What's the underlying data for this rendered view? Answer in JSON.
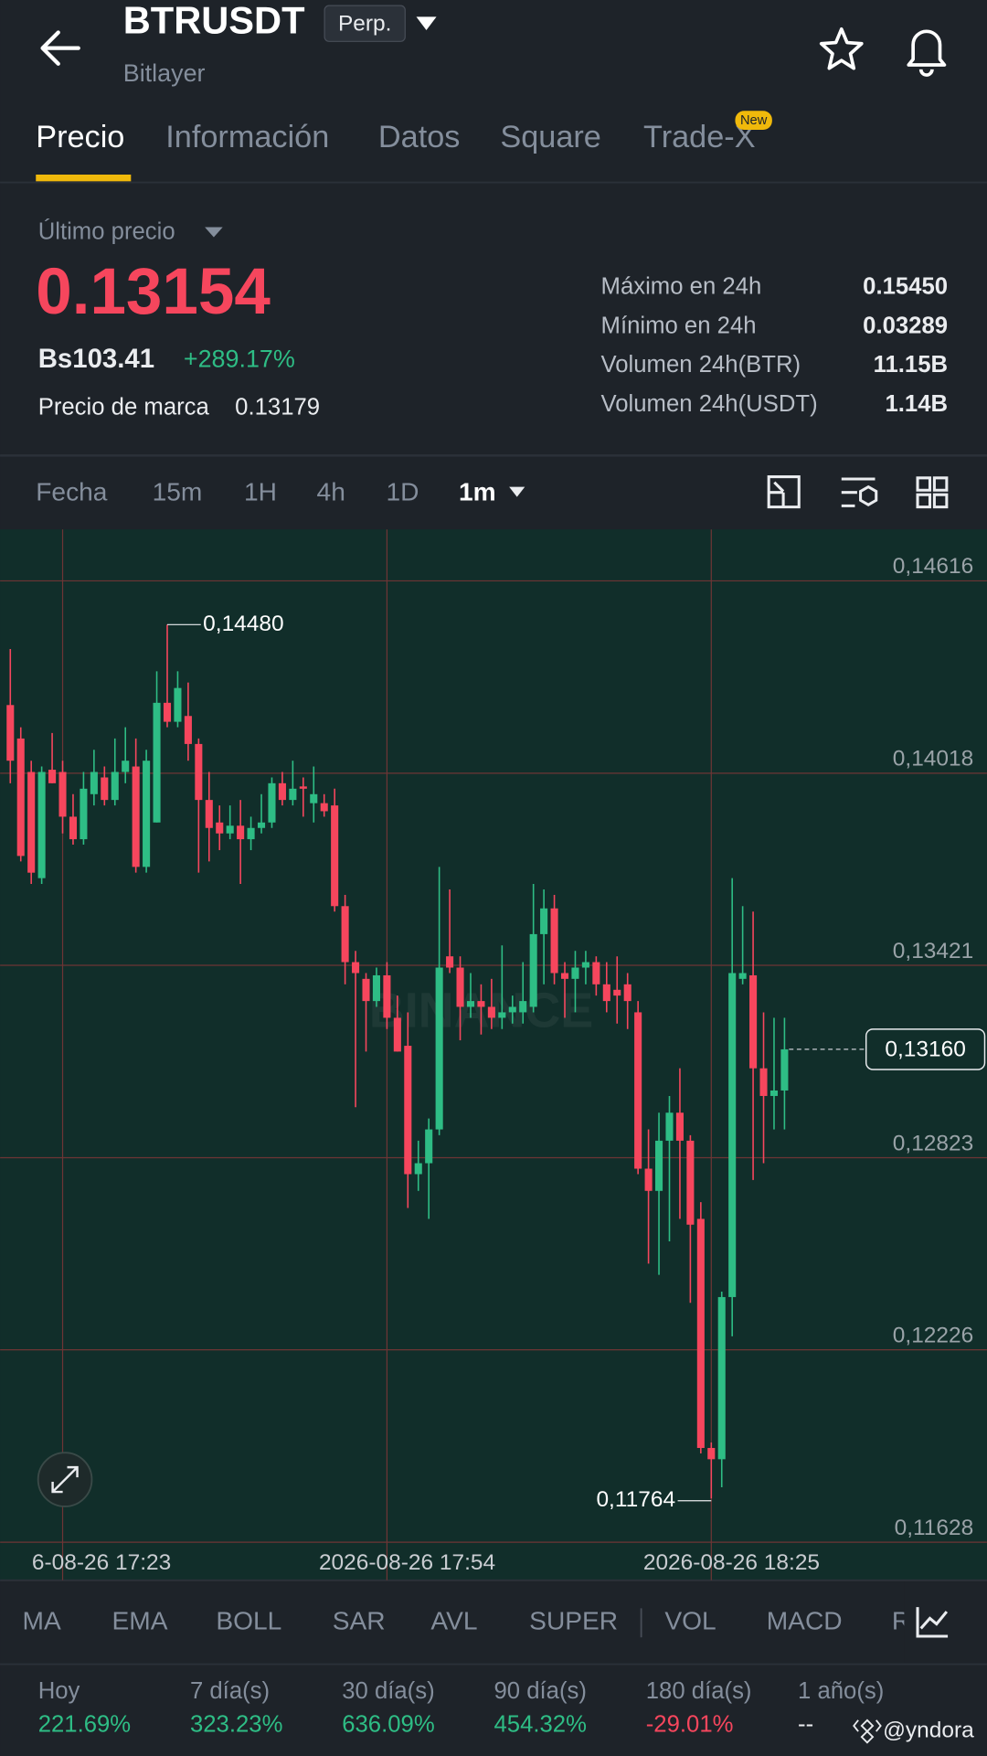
{
  "header": {
    "symbol": "BTRUSDT",
    "contract": "Perp.",
    "subtitle": "Bitlayer"
  },
  "tabs": [
    "Precio",
    "Información",
    "Datos",
    "Square",
    "Trade-X"
  ],
  "new_badge": "New",
  "price_panel": {
    "last_price_label": "Último precio",
    "last_price": "0.13154",
    "local_price": "Bs103.41",
    "change": "+289.17%",
    "mark_price_label": "Precio de marca",
    "mark_price": "0.13179",
    "stats": [
      {
        "label": "Máximo en 24h",
        "value": "0.15450"
      },
      {
        "label": "Mínimo en 24h",
        "value": "0.03289"
      },
      {
        "label": "Volumen 24h(BTR)",
        "value": "11.15B"
      },
      {
        "label": "Volumen 24h(USDT)",
        "value": "1.14B"
      }
    ]
  },
  "intervals": [
    "Fecha",
    "15m",
    "1H",
    "4h",
    "1D",
    "1m"
  ],
  "chart_data": {
    "type": "candlestick",
    "watermark": "BINANCE",
    "up_color": "#2ebd85",
    "down_color": "#f6465d",
    "xlim": [
      -0.98,
      93.35
    ],
    "ylim": [
      0.11628,
      0.14776
    ],
    "xticks": [
      {
        "value": 5,
        "label": "6-08-26 17:23"
      },
      {
        "value": 36,
        "label": "2026-08-26 17:54"
      },
      {
        "value": 67,
        "label": "2026-08-26 18:25"
      }
    ],
    "yticks": [
      {
        "value": 0.14616,
        "label": "0,14616"
      },
      {
        "value": 0.14018,
        "label": "0,14018"
      },
      {
        "value": 0.13421,
        "label": "0,13421"
      },
      {
        "value": 0.12823,
        "label": "0,12823"
      },
      {
        "value": 0.12226,
        "label": "0,12226"
      },
      {
        "value": 0.11628,
        "label": "0,11628"
      }
    ],
    "grid": true,
    "open": [
      0.1423,
      0.14126,
      0.14022,
      0.13692,
      0.14029,
      0.14022,
      0.13883,
      0.13813,
      0.13953,
      0.14005,
      0.13935,
      0.14022,
      0.14039,
      0.13727,
      0.13865,
      0.14237,
      0.14178,
      0.14196,
      0.14109,
      0.13935,
      0.13865,
      0.13831,
      0.13855,
      0.13813,
      0.13848,
      0.13865,
      0.13987,
      0.13935,
      0.13977,
      0.13925,
      0.13925,
      0.13918,
      0.13605,
      0.13431,
      0.13379,
      0.1331,
      0.1339,
      0.13258,
      0.13171,
      0.12772,
      0.12806,
      0.12911,
      0.13449,
      0.13414,
      0.13292,
      0.1331,
      0.13292,
      0.13258,
      0.13275,
      0.13275,
      0.13292,
      0.13518,
      0.13598,
      0.13397,
      0.13379,
      0.13414,
      0.13431,
      0.13362,
      0.13345,
      0.13362,
      0.13275,
      0.12789,
      0.1272,
      0.12876,
      0.12963,
      0.12876,
      0.12633,
      0.11921,
      0.11886,
      0.1239,
      0.13379,
      0.1339,
      0.13101,
      0.13015,
      0.13032
    ],
    "high": [
      0.14404,
      0.14161,
      0.14057,
      0.14039,
      0.14143,
      0.14057,
      0.13953,
      0.14022,
      0.14091,
      0.14039,
      0.14126,
      0.14161,
      0.14126,
      0.14091,
      0.14335,
      0.1448,
      0.14335,
      0.143,
      0.14126,
      0.14022,
      0.13918,
      0.13918,
      0.13935,
      0.13883,
      0.13953,
      0.14005,
      0.14022,
      0.14057,
      0.14005,
      0.14039,
      0.13953,
      0.1397,
      0.1364,
      0.13466,
      0.13397,
      0.13414,
      0.13431,
      0.13327,
      0.13275,
      0.12876,
      0.12945,
      0.13727,
      0.13657,
      0.13449,
      0.13397,
      0.13362,
      0.13379,
      0.13483,
      0.13327,
      0.13431,
      0.13674,
      0.13657,
      0.1364,
      0.13431,
      0.13466,
      0.13466,
      0.13449,
      0.13431,
      0.13449,
      0.13397,
      0.1331,
      0.12911,
      0.12963,
      0.13015,
      0.13101,
      0.12893,
      0.12685,
      0.11938,
      0.12407,
      0.13692,
      0.13605,
      0.13588,
      0.13275,
      0.13258,
      0.13258
    ],
    "low": [
      0.13987,
      0.13744,
      0.13674,
      0.13674,
      0.13987,
      0.13831,
      0.13796,
      0.13796,
      0.13918,
      0.13918,
      0.13918,
      0.13987,
      0.13709,
      0.13709,
      0.13865,
      0.14161,
      0.14161,
      0.14057,
      0.13709,
      0.13744,
      0.13779,
      0.13813,
      0.13674,
      0.13779,
      0.13831,
      0.13848,
      0.13918,
      0.13918,
      0.13883,
      0.13865,
      0.13883,
      0.13588,
      0.13362,
      0.1298,
      0.13153,
      0.13292,
      0.13223,
      0.13153,
      0.12667,
      0.1272,
      0.12633,
      0.12893,
      0.13397,
      0.13188,
      0.13258,
      0.13206,
      0.13223,
      0.13223,
      0.1324,
      0.1324,
      0.13275,
      0.13362,
      0.13362,
      0.13258,
      0.13275,
      0.13362,
      0.13327,
      0.13275,
      0.1324,
      0.13223,
      0.12772,
      0.12494,
      0.12459,
      0.12563,
      0.12633,
      0.12372,
      0.11904,
      0.11764,
      0.11799,
      0.12268,
      0.13362,
      0.12754,
      0.12806,
      0.12911,
      0.12911
    ],
    "close": [
      0.14057,
      0.13761,
      0.13709,
      0.14022,
      0.13987,
      0.13883,
      0.13813,
      0.1397,
      0.14022,
      0.13935,
      0.14022,
      0.14057,
      0.13727,
      0.14057,
      0.14237,
      0.14178,
      0.14283,
      0.14109,
      0.13935,
      0.13848,
      0.13831,
      0.13855,
      0.13813,
      0.13848,
      0.13865,
      0.13987,
      0.13935,
      0.1397,
      0.1397,
      0.13953,
      0.139,
      0.13605,
      0.13431,
      0.13397,
      0.1331,
      0.1339,
      0.13258,
      0.13153,
      0.12772,
      0.12806,
      0.12911,
      0.13414,
      0.13414,
      0.13292,
      0.1331,
      0.13292,
      0.13258,
      0.13275,
      0.13292,
      0.1331,
      0.13518,
      0.13598,
      0.13397,
      0.13379,
      0.13414,
      0.13431,
      0.13362,
      0.1331,
      0.13327,
      0.1331,
      0.12789,
      0.1272,
      0.12876,
      0.12963,
      0.12876,
      0.12615,
      0.11921,
      0.11886,
      0.1239,
      0.13397,
      0.13397,
      0.13101,
      0.13015,
      0.13032,
      0.1316
    ],
    "annotations": [
      {
        "value": 0.1448,
        "label": "0,14480"
      },
      {
        "value": 0.11764,
        "label": "0,11764"
      }
    ],
    "last_price": {
      "value": 0.1316,
      "label": "0,13160"
    }
  },
  "indicators": [
    "MA",
    "EMA",
    "BOLL",
    "SAR",
    "AVL",
    "SUPER",
    "VOL",
    "MACD",
    "R"
  ],
  "returns": [
    {
      "period": "Hoy",
      "value": "221.69%"
    },
    {
      "period": "7 día(s)",
      "value": "323.23%"
    },
    {
      "period": "30 día(s)",
      "value": "636.09%"
    },
    {
      "period": "90 día(s)",
      "value": "454.32%"
    },
    {
      "period": "180 día(s)",
      "value": "-29.01%"
    },
    {
      "period": "1 año(s)",
      "value": "--"
    }
  ],
  "footer_user": "@yndora"
}
